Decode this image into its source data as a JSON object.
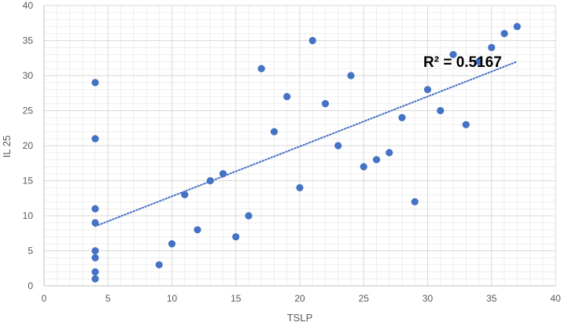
{
  "chart_data": {
    "type": "scatter",
    "title": "",
    "xlabel": "TSLP",
    "ylabel": "IL 25",
    "xlim": [
      0,
      40
    ],
    "ylim": [
      0,
      40
    ],
    "x_ticks": [
      0,
      5,
      10,
      15,
      20,
      25,
      30,
      35,
      40
    ],
    "y_ticks": [
      0,
      5,
      10,
      15,
      20,
      25,
      30,
      35,
      40
    ],
    "grid": true,
    "legend": "none",
    "series": [
      {
        "color": "#4472C4",
        "points": [
          {
            "x": 4,
            "y": 1
          },
          {
            "x": 4,
            "y": 2
          },
          {
            "x": 4,
            "y": 4
          },
          {
            "x": 4,
            "y": 5
          },
          {
            "x": 4,
            "y": 9
          },
          {
            "x": 4,
            "y": 11
          },
          {
            "x": 4,
            "y": 21
          },
          {
            "x": 4,
            "y": 29
          },
          {
            "x": 9,
            "y": 3
          },
          {
            "x": 10,
            "y": 6
          },
          {
            "x": 11,
            "y": 13
          },
          {
            "x": 12,
            "y": 8
          },
          {
            "x": 13,
            "y": 15
          },
          {
            "x": 14,
            "y": 16
          },
          {
            "x": 15,
            "y": 7
          },
          {
            "x": 16,
            "y": 10
          },
          {
            "x": 17,
            "y": 31
          },
          {
            "x": 18,
            "y": 22
          },
          {
            "x": 19,
            "y": 27
          },
          {
            "x": 20,
            "y": 14
          },
          {
            "x": 21,
            "y": 35
          },
          {
            "x": 22,
            "y": 26
          },
          {
            "x": 23,
            "y": 20
          },
          {
            "x": 24,
            "y": 30
          },
          {
            "x": 25,
            "y": 17
          },
          {
            "x": 26,
            "y": 18
          },
          {
            "x": 27,
            "y": 19
          },
          {
            "x": 28,
            "y": 24
          },
          {
            "x": 29,
            "y": 12
          },
          {
            "x": 30,
            "y": 28
          },
          {
            "x": 31,
            "y": 25
          },
          {
            "x": 32,
            "y": 33
          },
          {
            "x": 33,
            "y": 23
          },
          {
            "x": 34,
            "y": 32
          },
          {
            "x": 35,
            "y": 34
          },
          {
            "x": 36,
            "y": 36
          },
          {
            "x": 37,
            "y": 37
          }
        ]
      }
    ],
    "trendline": {
      "type": "linear",
      "style": "dotted",
      "color": "#4472C4",
      "x": [
        4,
        37
      ],
      "y": [
        8.5,
        32
      ]
    },
    "annotation": "R² = 0.5167"
  }
}
